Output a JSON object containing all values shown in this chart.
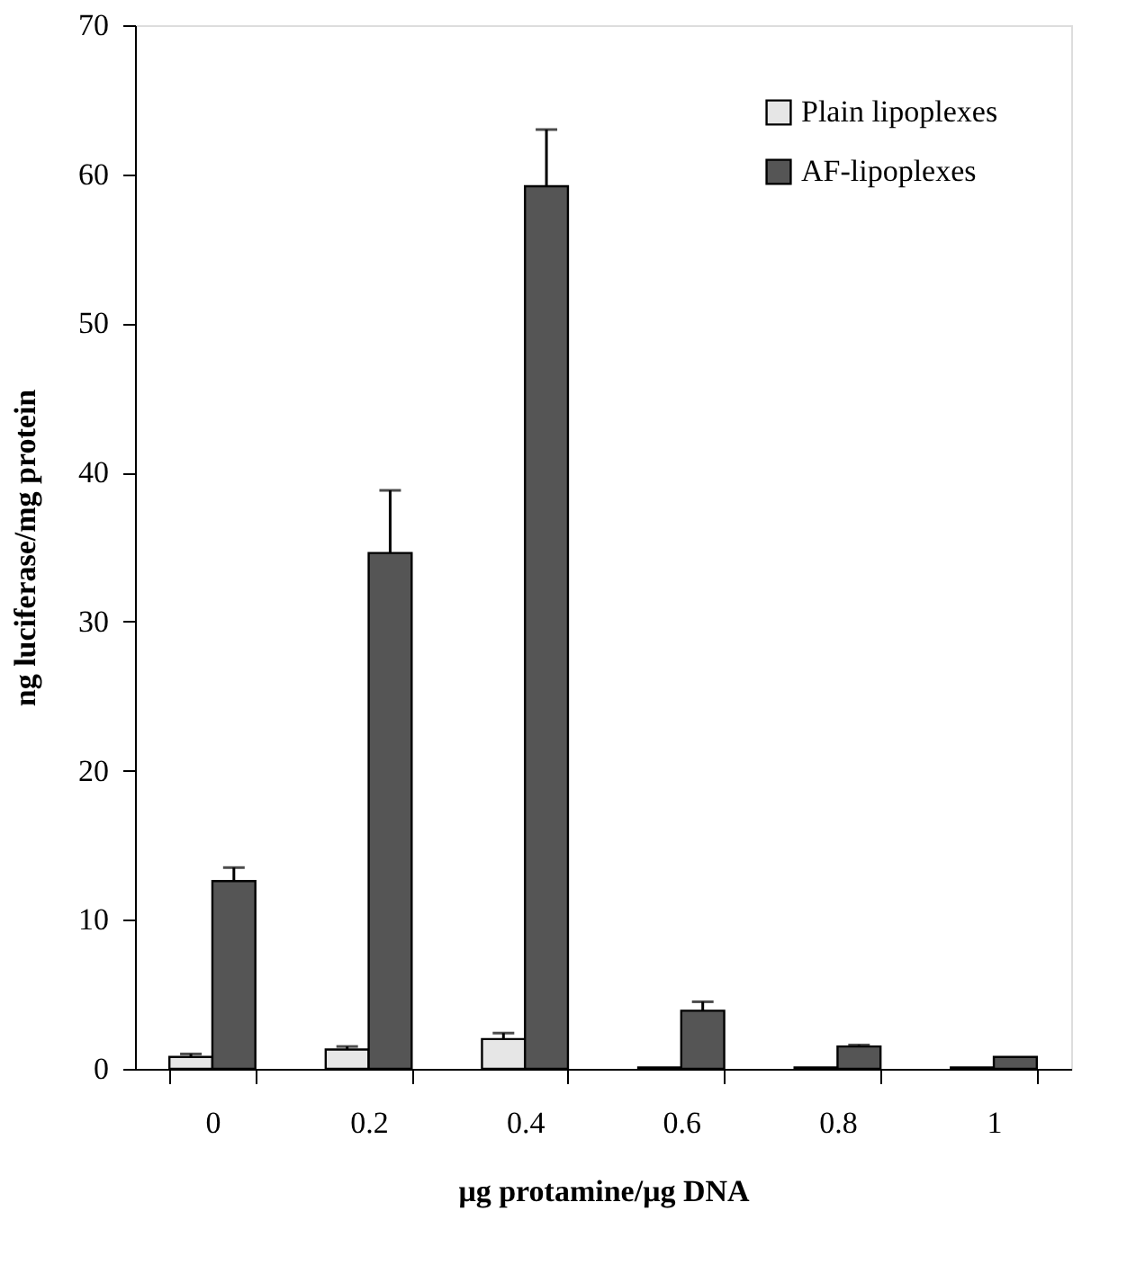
{
  "chart_data": {
    "type": "bar",
    "xlabel": "μg protamine/μg DNA",
    "ylabel": "ng luciferase/mg protein",
    "categories": [
      "0",
      "0.2",
      "0.4",
      "0.6",
      "0.8",
      "1"
    ],
    "series": [
      {
        "name": "Plain lipoplexes",
        "color": "#e6e6e6",
        "values": [
          0.8,
          1.3,
          2.0,
          0.1,
          0.1,
          0.1
        ],
        "errors": [
          [
            0.8,
            1.0
          ],
          [
            1.3,
            1.5
          ],
          [
            2.0,
            2.4
          ],
          null,
          null,
          null
        ]
      },
      {
        "name": "AF-lipoplexes",
        "color": "#555555",
        "values": [
          12.6,
          34.6,
          59.2,
          3.9,
          1.5,
          0.8
        ],
        "errors": [
          [
            12.6,
            13.5
          ],
          [
            34.6,
            38.8
          ],
          [
            59.2,
            63.0
          ],
          [
            3.9,
            4.5
          ],
          [
            1.5,
            1.6
          ],
          null
        ]
      }
    ],
    "ylim": [
      0,
      70
    ],
    "yticks": [
      0,
      10,
      20,
      30,
      40,
      50,
      60,
      70
    ],
    "grid": false,
    "legend": "top right"
  }
}
